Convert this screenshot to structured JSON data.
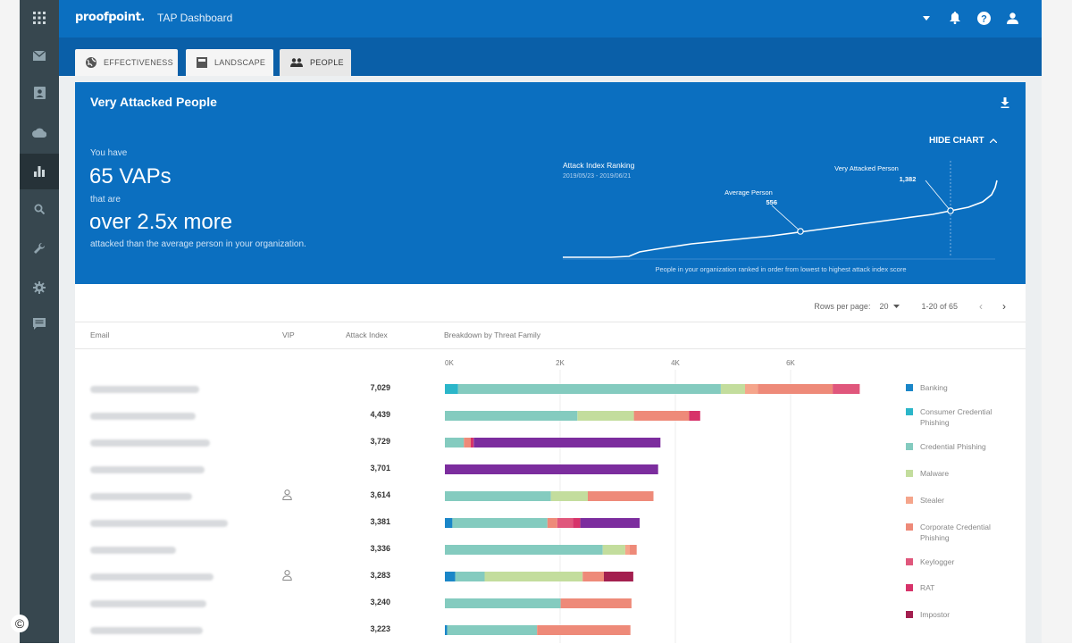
{
  "app": {
    "logo": "proofpoint.",
    "title": "TAP Dashboard"
  },
  "sidebar": {
    "items": [
      {
        "icon": "apps-grid-icon"
      },
      {
        "icon": "mail-icon"
      },
      {
        "icon": "contacts-icon"
      },
      {
        "icon": "cloud-icon"
      },
      {
        "icon": "bar-chart-icon",
        "active": true
      },
      {
        "icon": "search-icon"
      },
      {
        "icon": "wrench-icon"
      },
      {
        "icon": "gear-icon"
      },
      {
        "icon": "message-icon"
      }
    ]
  },
  "tabs": [
    {
      "label": "EFFECTIVENESS",
      "icon": "globe-icon"
    },
    {
      "label": "LANDSCAPE",
      "icon": "landscape-icon"
    },
    {
      "label": "PEOPLE",
      "icon": "people-icon",
      "active": true
    }
  ],
  "hero": {
    "title": "Very Attacked People",
    "you_have": "You have",
    "vaps": "65 VAPs",
    "that_are": "that are",
    "more": "over 2.5x more",
    "attacked": "attacked than the average person in your organization.",
    "hide_chart": "HIDE CHART",
    "chart_title": "Attack Index Ranking",
    "chart_dates": "2019/05/23 - 2019/06/21",
    "avg_label": "Average Person",
    "avg_value": "556",
    "vap_label": "Very Attacked Person",
    "vap_value": "1,382",
    "chart_caption": "People in your organization ranked in order from lowest to highest attack index score"
  },
  "pager": {
    "rows_per_page_label": "Rows per page:",
    "rows_per_page": "20",
    "range": "1-20 of 65"
  },
  "table": {
    "headers": {
      "email": "Email",
      "vip": "VIP",
      "attack_index": "Attack Index",
      "breakdown": "Breakdown by Threat Family"
    },
    "axis_ticks": [
      "0K",
      "2K",
      "4K",
      "6K"
    ],
    "colors": {
      "Banking": "#1a86c8",
      "Consumer Credential Phishing": "#2bb6c9",
      "Credential Phishing": "#84cbbf",
      "Malware": "#c3dd9d",
      "Stealer": "#f5a58b",
      "Corporate Credential Phishing": "#ee8a79",
      "Keylogger": "#e0577c",
      "RAT": "#d7336a",
      "Impostor": "#a31f4f",
      "Purple": "#7c2d9e"
    },
    "rows": [
      {
        "attack_index": "7,029",
        "email_w": 122,
        "vip": false,
        "segments": [
          [
            "Consumer Credential Phishing",
            230
          ],
          [
            "Credential Phishing",
            4560
          ],
          [
            "Malware",
            420
          ],
          [
            "Stealer",
            220
          ],
          [
            "Corporate Credential Phishing",
            1300
          ],
          [
            "Keylogger",
            470
          ]
        ]
      },
      {
        "attack_index": "4,439",
        "email_w": 118,
        "vip": false,
        "segments": [
          [
            "Credential Phishing",
            2300
          ],
          [
            "Malware",
            980
          ],
          [
            "Corporate Credential Phishing",
            960
          ],
          [
            "RAT",
            190
          ]
        ]
      },
      {
        "attack_index": "3,729",
        "email_w": 134,
        "vip": false,
        "segments": [
          [
            "Credential Phishing",
            330
          ],
          [
            "Corporate Credential Phishing",
            120
          ],
          [
            "RAT",
            50
          ],
          [
            "Purple",
            3240
          ]
        ]
      },
      {
        "attack_index": "3,701",
        "email_w": 128,
        "vip": false,
        "segments": [
          [
            "Purple",
            3700
          ]
        ]
      },
      {
        "attack_index": "3,614",
        "email_w": 114,
        "vip": true,
        "segments": [
          [
            "Credential Phishing",
            1840
          ],
          [
            "Malware",
            640
          ],
          [
            "Corporate Credential Phishing",
            1140
          ]
        ]
      },
      {
        "attack_index": "3,381",
        "email_w": 154,
        "vip": false,
        "segments": [
          [
            "Banking",
            130
          ],
          [
            "Credential Phishing",
            1650
          ],
          [
            "Corporate Credential Phishing",
            170
          ],
          [
            "Keylogger",
            270
          ],
          [
            "RAT",
            130
          ],
          [
            "Purple",
            1030
          ]
        ]
      },
      {
        "attack_index": "3,336",
        "email_w": 96,
        "vip": false,
        "segments": [
          [
            "Credential Phishing",
            2740
          ],
          [
            "Malware",
            390
          ],
          [
            "Stealer",
            80
          ],
          [
            "Corporate Credential Phishing",
            120
          ]
        ]
      },
      {
        "attack_index": "3,283",
        "email_w": 138,
        "vip": true,
        "segments": [
          [
            "Banking",
            180
          ],
          [
            "Credential Phishing",
            510
          ],
          [
            "Malware",
            1700
          ],
          [
            "Corporate Credential Phishing",
            370
          ],
          [
            "Impostor",
            510
          ]
        ]
      },
      {
        "attack_index": "3,240",
        "email_w": 130,
        "vip": false,
        "segments": [
          [
            "Credential Phishing",
            2010
          ],
          [
            "Corporate Credential Phishing",
            1230
          ]
        ]
      },
      {
        "attack_index": "3,223",
        "email_w": 126,
        "vip": false,
        "segments": [
          [
            "Banking",
            40
          ],
          [
            "Credential Phishing",
            1560
          ],
          [
            "Corporate Credential Phishing",
            1620
          ]
        ]
      }
    ]
  },
  "legend": [
    {
      "label": "Banking",
      "color": "#1a86c8"
    },
    {
      "label": "Consumer Credential Phishing",
      "color": "#2bb6c9"
    },
    {
      "label": "Credential Phishing",
      "color": "#84cbbf"
    },
    {
      "label": "Malware",
      "color": "#c3dd9d"
    },
    {
      "label": "Stealer",
      "color": "#f5a58b"
    },
    {
      "label": "Corporate Credential Phishing",
      "color": "#ee8a79"
    },
    {
      "label": "Keylogger",
      "color": "#e0577c"
    },
    {
      "label": "RAT",
      "color": "#d7336a"
    },
    {
      "label": "Impostor",
      "color": "#a31f4f"
    }
  ],
  "copyright": "©"
}
